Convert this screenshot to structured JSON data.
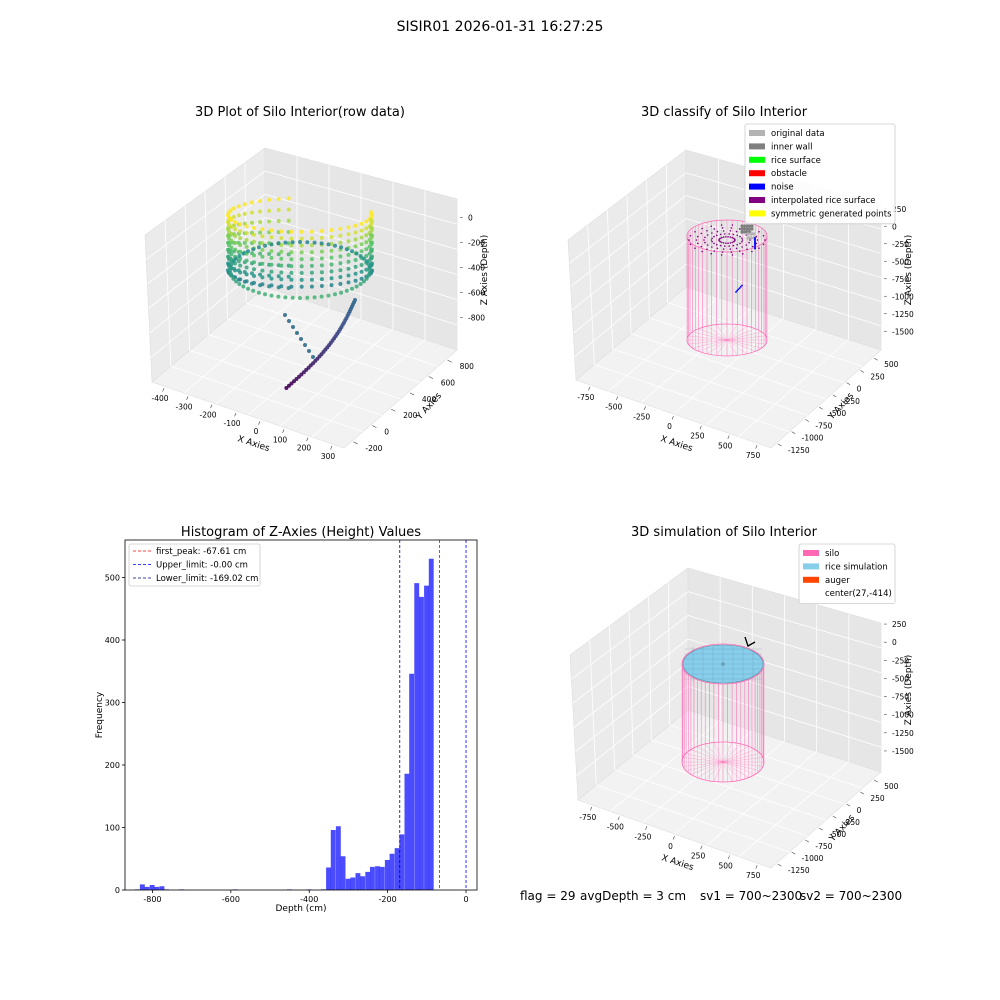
{
  "figure": {
    "suptitle": "SISIR01 2026-01-31 16:27:25"
  },
  "panels": {
    "raw": {
      "title": "3D Plot of Silo Interior(row data)",
      "xlabel": "X Axies",
      "ylabel": "Y Axies",
      "zlabel": "Z Axies (Depth)",
      "xticks": [
        "-400",
        "-300",
        "-200",
        "-100",
        "0",
        "100",
        "200",
        "300"
      ],
      "yticks": [
        "-200",
        "0",
        "200",
        "400",
        "600",
        "800"
      ],
      "zticks": [
        "0",
        "-200",
        "-400",
        "-600",
        "-800"
      ],
      "colormap": [
        "#440154",
        "#3b528b",
        "#21918c",
        "#5ec962",
        "#fde725"
      ]
    },
    "classify": {
      "title": "3D classify of Silo Interior",
      "xlabel": "X Axies",
      "ylabel": "Y Axies",
      "zlabel": "Z Axies (Depth)",
      "xticks": [
        "-750",
        "-500",
        "-250",
        "0",
        "250",
        "500",
        "750"
      ],
      "yticks": [
        "-1250",
        "-1000",
        "-750",
        "-500",
        "-250",
        "0",
        "250",
        "500"
      ],
      "zticks": [
        "250",
        "0",
        "-250",
        "-500",
        "-750",
        "-1000",
        "-1250",
        "-1500"
      ],
      "legend": [
        {
          "label": "original data",
          "color": "#b3b3b3"
        },
        {
          "label": "inner wall",
          "color": "#808080"
        },
        {
          "label": "rice surface",
          "color": "#00ff00"
        },
        {
          "label": "obstacle",
          "color": "#ff0000"
        },
        {
          "label": "noise",
          "color": "#0000ff"
        },
        {
          "label": "interpolated rice surface",
          "color": "#800080"
        },
        {
          "label": "symmetric generated points",
          "color": "#ffff00"
        }
      ],
      "silo_color": "#ff69b4"
    },
    "simulation": {
      "title": "3D simulation of Silo Interior",
      "xlabel": "X Axies",
      "ylabel": "Y Axies",
      "zlabel": "Z Axies (Depth)",
      "xticks": [
        "-750",
        "-500",
        "-250",
        "0",
        "250",
        "500",
        "750"
      ],
      "yticks": [
        "-1250",
        "-1000",
        "-750",
        "-500",
        "-250",
        "0",
        "250",
        "500"
      ],
      "zticks": [
        "250",
        "0",
        "-250",
        "-500",
        "-750",
        "-1000",
        "-1250",
        "-1500"
      ],
      "legend": [
        {
          "label": "silo",
          "color": "#ff69b4"
        },
        {
          "label": "rice simulation",
          "color": "#87ceeb"
        },
        {
          "label": "auger",
          "color": "#ff4500"
        },
        {
          "label": "center(27,-414)",
          "color": ""
        }
      ]
    }
  },
  "chart_data": [
    {
      "type": "bar",
      "title": "Histogram of Z-Axies (Height) Values",
      "xlabel": "Depth (cm)",
      "ylabel": "Frequency",
      "xlim": [
        -870,
        28
      ],
      "ylim": [
        0,
        560
      ],
      "xticks": [
        -800,
        -600,
        -400,
        -200,
        0
      ],
      "yticks": [
        0,
        100,
        200,
        300,
        400,
        500
      ],
      "bin_width": 12.5,
      "bar_color": "#0000ff",
      "bar_alpha": 0.7,
      "bins": [
        [
          -845,
          1
        ],
        [
          -832,
          9
        ],
        [
          -820,
          5
        ],
        [
          -807,
          8
        ],
        [
          -795,
          5
        ],
        [
          -782,
          6
        ],
        [
          -770,
          1
        ],
        [
          -757,
          0
        ],
        [
          -745,
          0
        ],
        [
          -732,
          1
        ],
        [
          -720,
          0
        ],
        [
          -707,
          0
        ],
        [
          -695,
          0
        ],
        [
          -682,
          0
        ],
        [
          -670,
          0
        ],
        [
          -657,
          0
        ],
        [
          -645,
          0
        ],
        [
          -632,
          0
        ],
        [
          -620,
          0
        ],
        [
          -607,
          0
        ],
        [
          -595,
          1
        ],
        [
          -582,
          0
        ],
        [
          -570,
          0
        ],
        [
          -557,
          0
        ],
        [
          -545,
          0
        ],
        [
          -532,
          0
        ],
        [
          -520,
          0
        ],
        [
          -507,
          0
        ],
        [
          -495,
          0
        ],
        [
          -482,
          0
        ],
        [
          -470,
          0
        ],
        [
          -457,
          1
        ],
        [
          -445,
          0
        ],
        [
          -432,
          0
        ],
        [
          -420,
          0
        ],
        [
          -407,
          1
        ],
        [
          -395,
          0
        ],
        [
          -382,
          0
        ],
        [
          -370,
          1
        ],
        [
          -357,
          36
        ],
        [
          -345,
          96
        ],
        [
          -332,
          102
        ],
        [
          -320,
          54
        ],
        [
          -307,
          18
        ],
        [
          -295,
          20
        ],
        [
          -282,
          27
        ],
        [
          -270,
          22
        ],
        [
          -257,
          29
        ],
        [
          -245,
          37
        ],
        [
          -232,
          38
        ],
        [
          -220,
          37
        ],
        [
          -207,
          48
        ],
        [
          -195,
          58
        ],
        [
          -182,
          67
        ],
        [
          -170,
          89
        ],
        [
          -157,
          186
        ],
        [
          -145,
          346
        ],
        [
          -132,
          491
        ],
        [
          -120,
          469
        ],
        [
          -107,
          487
        ],
        [
          -95,
          530
        ],
        [
          -82,
          0
        ],
        [
          -70,
          0
        ],
        [
          -57,
          0
        ]
      ],
      "vlines": [
        {
          "label": "first_peak: -67.61 cm",
          "x": -67.61,
          "color": "#ff0000"
        },
        {
          "label": "Upper_limit: -0.00 cm",
          "x": 0.0,
          "color": "#0000ff"
        },
        {
          "label": "Lower_limit: -169.02 cm",
          "x": -169.02,
          "color": "#00008b"
        }
      ]
    }
  ],
  "footer": {
    "flag": "flag = 29",
    "avg_depth": "avgDepth = 3 cm",
    "sv1": "sv1 = 700~2300",
    "sv2": "sv2 = 700~2300"
  }
}
